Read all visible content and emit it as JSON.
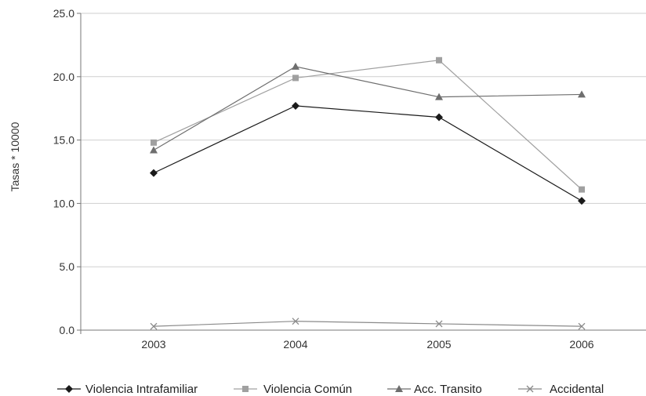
{
  "chart_data": {
    "type": "line",
    "title": "",
    "xlabel": "",
    "ylabel": "Tasas * 10000",
    "categories": [
      "2003",
      "2004",
      "2005",
      "2006"
    ],
    "ylim": [
      0,
      25
    ],
    "yticks": [
      "0.0",
      "5.0",
      "10.0",
      "15.0",
      "20.0",
      "25.0"
    ],
    "grid": true,
    "legend_position": "bottom",
    "series": [
      {
        "name": "Violencia Intrafamiliar",
        "values": [
          12.4,
          17.7,
          16.8,
          10.2
        ],
        "color": "#1a1a1a",
        "marker": "diamond"
      },
      {
        "name": "Violencia Común",
        "values": [
          14.8,
          19.9,
          21.3,
          11.1
        ],
        "color": "#a0a0a0",
        "marker": "square"
      },
      {
        "name": "Acc. Transito",
        "values": [
          14.2,
          20.8,
          18.4,
          18.6
        ],
        "color": "#6e6e6e",
        "marker": "triangle"
      },
      {
        "name": "Accidental",
        "values": [
          0.3,
          0.7,
          0.5,
          0.3
        ],
        "color": "#8a8a8a",
        "marker": "x"
      }
    ]
  }
}
